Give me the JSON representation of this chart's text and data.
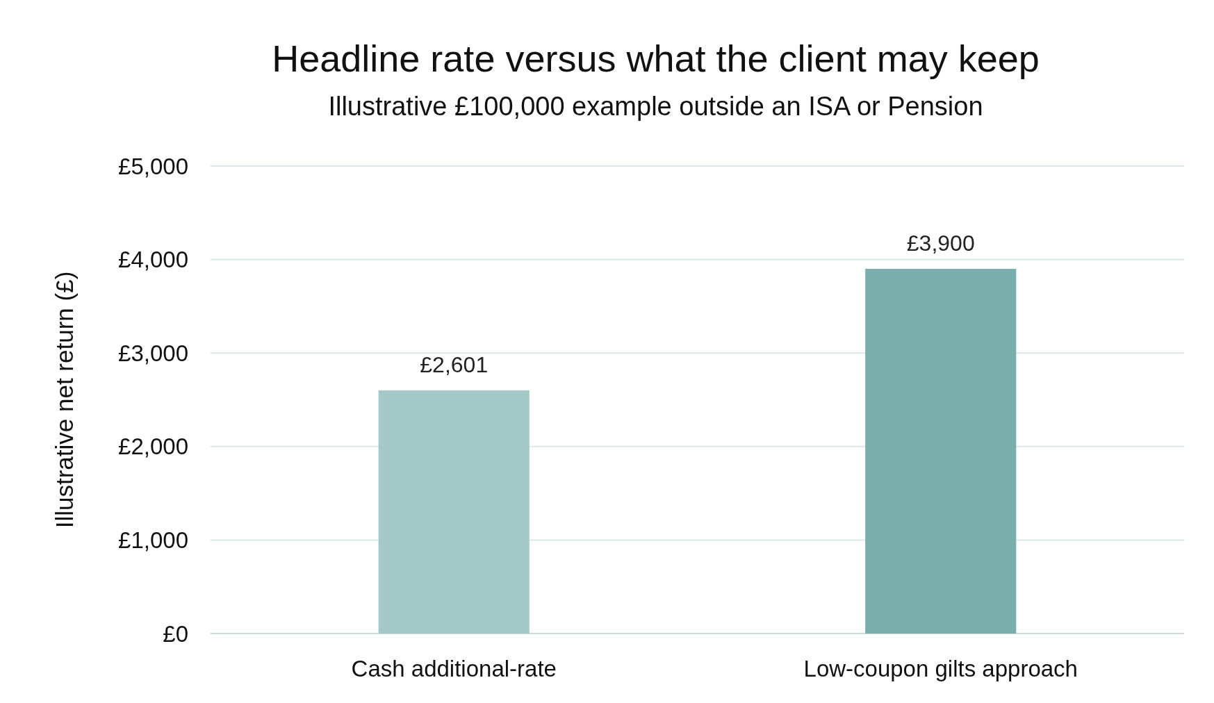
{
  "chart_data": {
    "type": "bar",
    "title": "Headline rate versus what the client may keep",
    "subtitle": "Illustrative £100,000 example outside an ISA or Pension",
    "ylabel": "Illustrative net return (£)",
    "categories": [
      "Cash additional-rate",
      "Low-coupon gilts approach"
    ],
    "values": [
      2601,
      3900
    ],
    "colors": [
      "#a5c9c8",
      "#79aeac"
    ],
    "value_labels": [
      "£2,601",
      "£3,900"
    ],
    "ylim": [
      0,
      5000
    ],
    "yticks": [
      {
        "value": 0,
        "label": "£0"
      },
      {
        "value": 1000,
        "label": "£1,000"
      },
      {
        "value": 2000,
        "label": "£2,000"
      },
      {
        "value": 3000,
        "label": "£3,000"
      },
      {
        "value": 4000,
        "label": "£4,000"
      },
      {
        "value": 5000,
        "label": "£5,000"
      }
    ],
    "grid": "y"
  }
}
